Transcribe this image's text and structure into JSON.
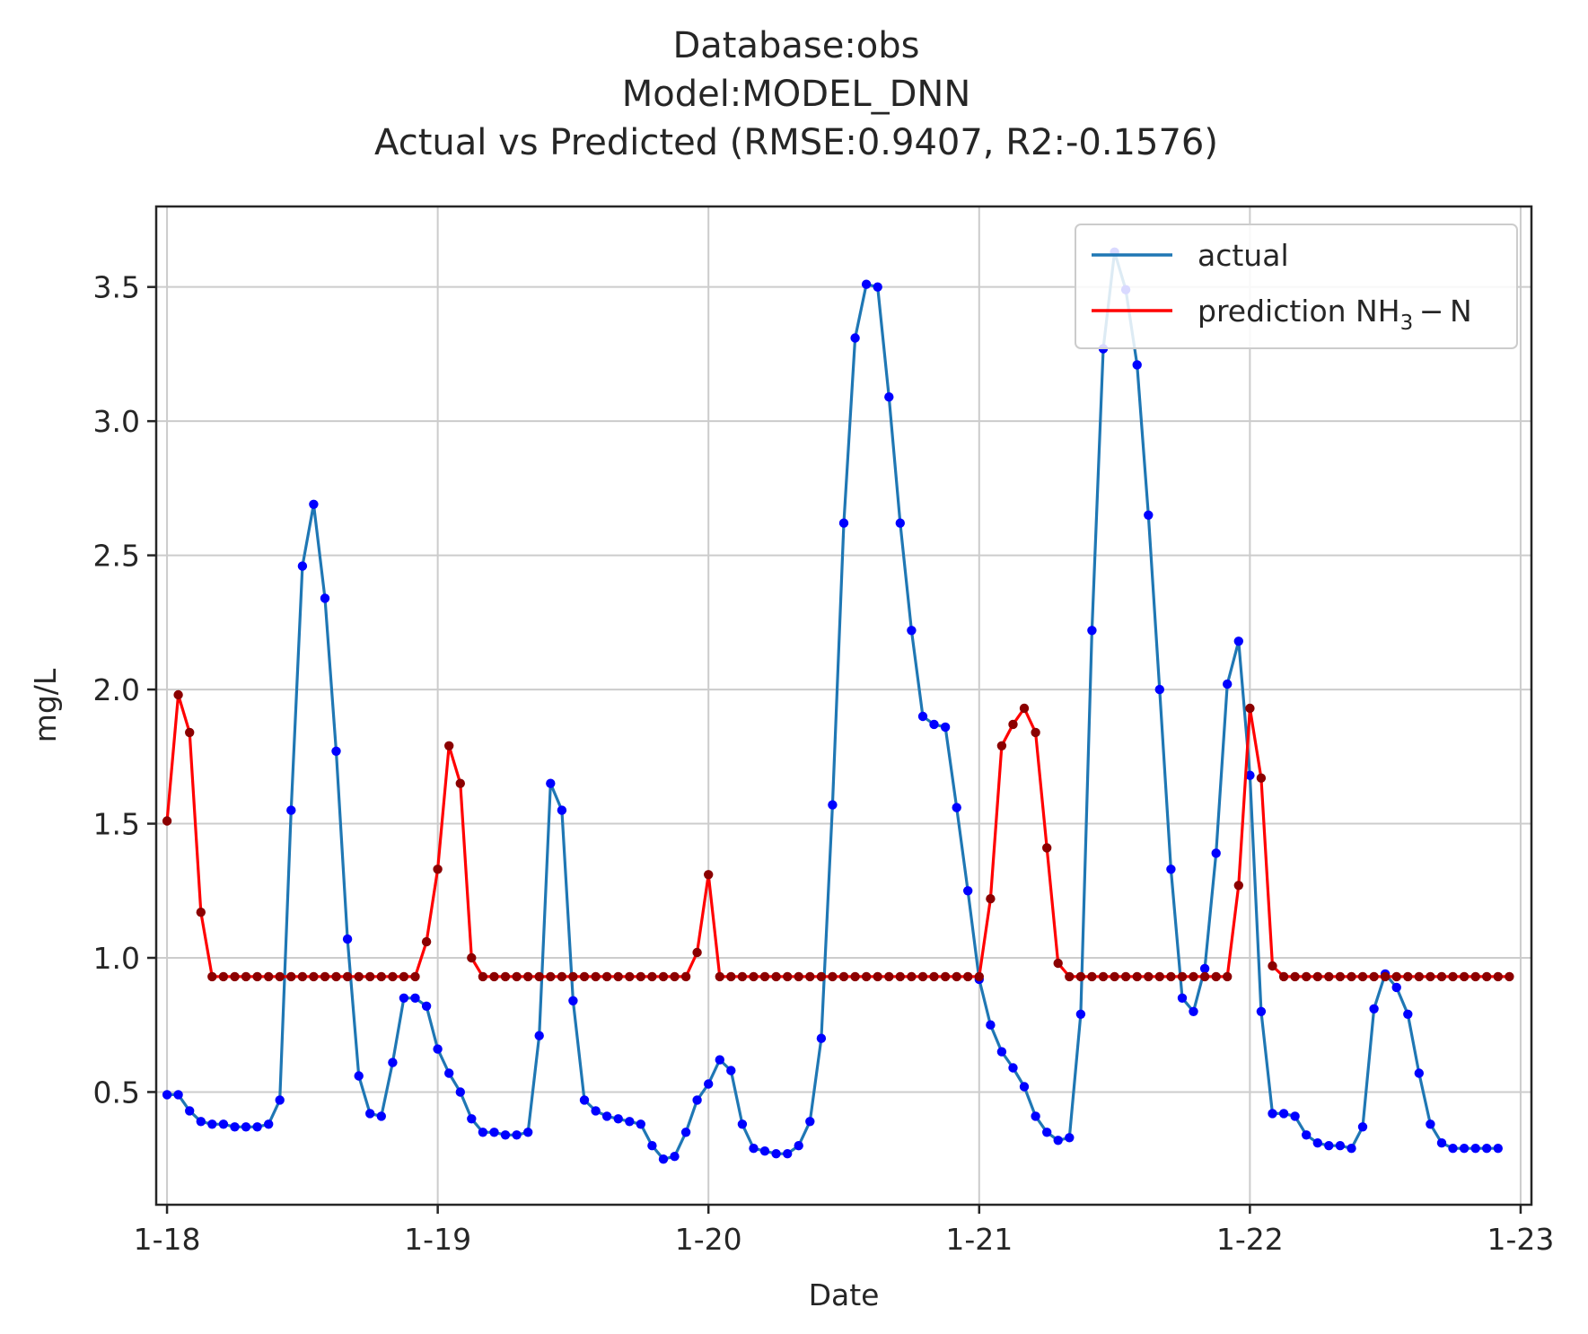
{
  "chart_data": {
    "type": "line",
    "title_lines": [
      "Database:obs",
      "Model:MODEL_DNN",
      "Actual vs Predicted (RMSE:0.9407, R2:-0.1576)"
    ],
    "xlabel": "Date",
    "ylabel": "mg/L",
    "x_ticks": [
      "1-18",
      "1-19",
      "1-20",
      "1-21",
      "1-22",
      "1-23"
    ],
    "y_ticks": [
      "0.5",
      "1.0",
      "1.5",
      "2.0",
      "2.5",
      "3.0",
      "3.5"
    ],
    "xlim_days": [
      -0.04,
      5.04
    ],
    "ylim": [
      0.08,
      3.8
    ],
    "step_hours": 1,
    "grid": true,
    "legend_position": "top-right",
    "legend": {
      "actual_label": "actual",
      "prediction_prefix": "prediction NH",
      "prediction_sub": "3",
      "prediction_suffix": " − N"
    },
    "series": [
      {
        "name": "actual",
        "color": "#1f77b4",
        "marker_color": "#0000ff",
        "values": [
          0.49,
          0.49,
          0.43,
          0.39,
          0.38,
          0.38,
          0.37,
          0.37,
          0.37,
          0.38,
          0.47,
          1.55,
          2.46,
          2.69,
          2.34,
          1.77,
          1.07,
          0.56,
          0.42,
          0.41,
          0.61,
          0.85,
          0.85,
          0.82,
          0.66,
          0.57,
          0.5,
          0.4,
          0.35,
          0.35,
          0.34,
          0.34,
          0.35,
          0.71,
          1.65,
          1.55,
          0.84,
          0.47,
          0.43,
          0.41,
          0.4,
          0.39,
          0.38,
          0.3,
          0.25,
          0.26,
          0.35,
          0.47,
          0.53,
          0.62,
          0.58,
          0.38,
          0.29,
          0.28,
          0.27,
          0.27,
          0.3,
          0.39,
          0.7,
          1.57,
          2.62,
          3.31,
          3.51,
          3.5,
          3.09,
          2.62,
          2.22,
          1.9,
          1.87,
          1.86,
          1.56,
          1.25,
          0.92,
          0.75,
          0.65,
          0.59,
          0.52,
          0.41,
          0.35,
          0.32,
          0.33,
          0.79,
          2.22,
          3.27,
          3.63,
          3.49,
          3.21,
          2.65,
          2.0,
          1.33,
          0.85,
          0.8,
          0.96,
          1.39,
          2.02,
          2.18,
          1.68,
          0.8,
          0.42,
          0.42,
          0.41,
          0.34,
          0.31,
          0.3,
          0.3,
          0.29,
          0.37,
          0.81,
          0.94,
          0.89,
          0.79,
          0.57,
          0.38,
          0.31,
          0.29,
          0.29,
          0.29,
          0.29,
          0.29
        ]
      },
      {
        "name": "prediction NH3-N",
        "color": "#ff0000",
        "marker_color": "#8b0000",
        "values": [
          1.51,
          1.98,
          1.84,
          1.17,
          0.93,
          0.93,
          0.93,
          0.93,
          0.93,
          0.93,
          0.93,
          0.93,
          0.93,
          0.93,
          0.93,
          0.93,
          0.93,
          0.93,
          0.93,
          0.93,
          0.93,
          0.93,
          0.93,
          1.06,
          1.33,
          1.79,
          1.65,
          1.0,
          0.93,
          0.93,
          0.93,
          0.93,
          0.93,
          0.93,
          0.93,
          0.93,
          0.93,
          0.93,
          0.93,
          0.93,
          0.93,
          0.93,
          0.93,
          0.93,
          0.93,
          0.93,
          0.93,
          1.02,
          1.31,
          0.93,
          0.93,
          0.93,
          0.93,
          0.93,
          0.93,
          0.93,
          0.93,
          0.93,
          0.93,
          0.93,
          0.93,
          0.93,
          0.93,
          0.93,
          0.93,
          0.93,
          0.93,
          0.93,
          0.93,
          0.93,
          0.93,
          0.93,
          0.93,
          1.22,
          1.79,
          1.87,
          1.93,
          1.84,
          1.41,
          0.98,
          0.93,
          0.93,
          0.93,
          0.93,
          0.93,
          0.93,
          0.93,
          0.93,
          0.93,
          0.93,
          0.93,
          0.93,
          0.93,
          0.93,
          0.93,
          1.27,
          1.93,
          1.67,
          0.97,
          0.93,
          0.93,
          0.93,
          0.93,
          0.93,
          0.93,
          0.93,
          0.93,
          0.93,
          0.93,
          0.93,
          0.93,
          0.93,
          0.93,
          0.93,
          0.93,
          0.93,
          0.93,
          0.93,
          0.93,
          0.93
        ]
      }
    ]
  }
}
